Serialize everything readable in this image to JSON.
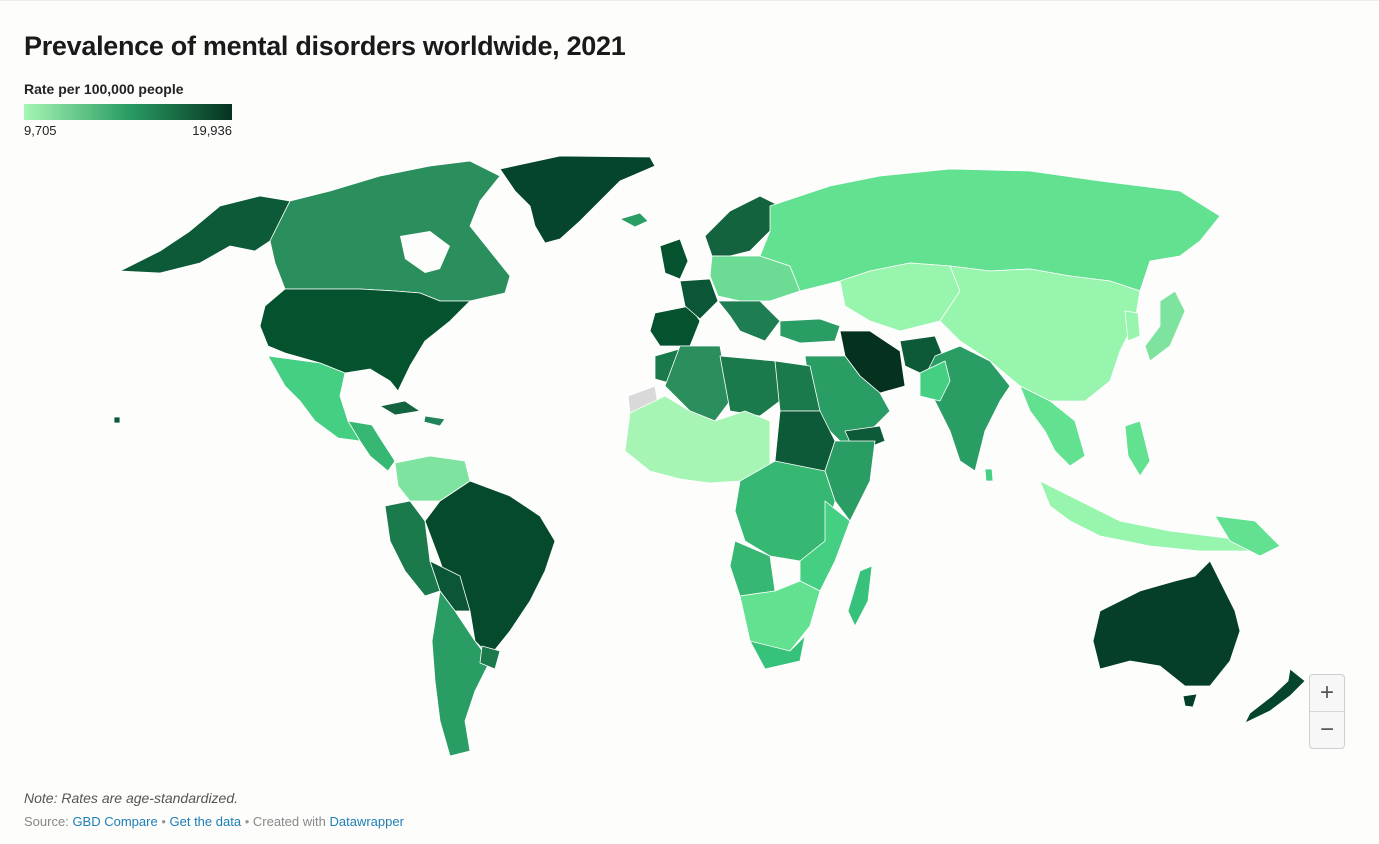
{
  "title": "Prevalence of mental disorders worldwide, 2021",
  "legend": {
    "title": "Rate per 100,000 people",
    "min_label": "9,705",
    "max_label": "19,936",
    "color_low": "#a6f5b4",
    "color_mid": "#2a9d64",
    "color_high": "#05321f"
  },
  "map": {
    "type": "choropleth",
    "no_data_color": "#d9d9d9",
    "border_color": "#ffffff"
  },
  "zoom": {
    "in_label": "+",
    "out_label": "−"
  },
  "note": "Note: Rates are age-standardized.",
  "footer": {
    "source_prefix": "Source:",
    "source_link": "GBD Compare",
    "sep1": "•",
    "data_link": "Get the data",
    "sep2": "•",
    "created_prefix": "Created with",
    "created_link": "Datawrapper"
  }
}
